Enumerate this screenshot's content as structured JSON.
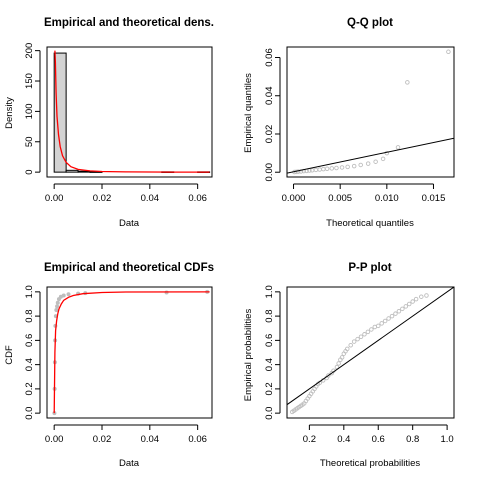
{
  "chart_data": [
    {
      "type": "histogram",
      "title": "Empirical and theoretical dens.",
      "xlabel": "Data",
      "ylabel": "Density",
      "xlim": [
        -0.003,
        0.066
      ],
      "ylim": [
        -8,
        206
      ],
      "xticks": [
        "0.00",
        "0.02",
        "0.04",
        "0.06"
      ],
      "yticks": [
        "0",
        "50",
        "100",
        "150",
        "200"
      ],
      "bars": [
        {
          "x0": 0.0,
          "x1": 0.005,
          "height": 196
        },
        {
          "x0": 0.005,
          "x1": 0.01,
          "height": 3
        },
        {
          "x0": 0.01,
          "x1": 0.015,
          "height": 1.5
        },
        {
          "x0": 0.015,
          "x1": 0.02,
          "height": 0.6
        },
        {
          "x0": 0.045,
          "x1": 0.05,
          "height": 0.5
        },
        {
          "x0": 0.06,
          "x1": 0.065,
          "height": 0.5
        }
      ],
      "density_curve": {
        "x": [
          0.0003,
          0.0005,
          0.0008,
          0.0012,
          0.0018,
          0.0025,
          0.0035,
          0.005,
          0.007,
          0.01,
          0.015,
          0.02,
          0.03,
          0.04,
          0.05,
          0.065
        ],
        "y": [
          200,
          180,
          130,
          92,
          62,
          42,
          27,
          16,
          9,
          4.5,
          2,
          1,
          0.4,
          0.2,
          0.1,
          0.05
        ]
      },
      "colors": {
        "bars": "#d3d3d3",
        "curve": "#ff0000"
      }
    },
    {
      "type": "scatter",
      "title": "Q-Q plot",
      "xlabel": "Theoretical quantiles",
      "ylabel": "Empirical quantiles",
      "xlim": [
        -0.0007,
        0.0172
      ],
      "ylim": [
        -0.0025,
        0.0655
      ],
      "xticks": [
        "0.000",
        "0.005",
        "0.010",
        "0.015"
      ],
      "yticks": [
        "0.00",
        "0.02",
        "0.04",
        "0.06"
      ],
      "points": [
        [
          0.0001,
          0.0001
        ],
        [
          0.0003,
          0.0002
        ],
        [
          0.0005,
          0.0003
        ],
        [
          0.0008,
          0.0004
        ],
        [
          0.0011,
          0.0006
        ],
        [
          0.0014,
          0.0007
        ],
        [
          0.0017,
          0.0009
        ],
        [
          0.002,
          0.001
        ],
        [
          0.0024,
          0.0012
        ],
        [
          0.0028,
          0.0014
        ],
        [
          0.0032,
          0.0016
        ],
        [
          0.0036,
          0.0018
        ],
        [
          0.0041,
          0.002
        ],
        [
          0.0046,
          0.0022
        ],
        [
          0.0052,
          0.0025
        ],
        [
          0.0058,
          0.0028
        ],
        [
          0.0065,
          0.0032
        ],
        [
          0.0072,
          0.0038
        ],
        [
          0.008,
          0.0045
        ],
        [
          0.0088,
          0.0055
        ],
        [
          0.0096,
          0.007
        ],
        [
          0.01,
          0.01
        ],
        [
          0.0112,
          0.013
        ],
        [
          0.0122,
          0.047
        ],
        [
          0.0166,
          0.063
        ]
      ],
      "reference_line": [
        [
          -0.0007,
          -0.0005
        ],
        [
          0.0172,
          0.0178
        ]
      ],
      "colors": {
        "points": "#bebebe",
        "line": "#000000"
      }
    },
    {
      "type": "line",
      "title": "Empirical and theoretical CDFs",
      "xlabel": "Data",
      "ylabel": "CDF",
      "xlim": [
        -0.003,
        0.066
      ],
      "ylim": [
        -0.04,
        1.04
      ],
      "xticks": [
        "0.00",
        "0.02",
        "0.04",
        "0.06"
      ],
      "yticks": [
        "0.0",
        "0.2",
        "0.4",
        "0.6",
        "0.8",
        "1.0"
      ],
      "empirical": {
        "x": [
          0.0001,
          0.0002,
          0.0003,
          0.0004,
          0.0005,
          0.0007,
          0.0009,
          0.0012,
          0.0015,
          0.002,
          0.0028,
          0.004,
          0.006,
          0.01,
          0.013,
          0.047,
          0.064
        ],
        "y": [
          0.0,
          0.2,
          0.42,
          0.6,
          0.72,
          0.8,
          0.85,
          0.88,
          0.91,
          0.94,
          0.96,
          0.97,
          0.98,
          0.985,
          0.99,
          0.995,
          1.0
        ]
      },
      "theoretical": {
        "x": [
          0.0,
          0.0003,
          0.0006,
          0.001,
          0.0015,
          0.002,
          0.003,
          0.004,
          0.006,
          0.008,
          0.012,
          0.02,
          0.03,
          0.065
        ],
        "y": [
          0.0,
          0.5,
          0.68,
          0.76,
          0.82,
          0.86,
          0.9,
          0.93,
          0.955,
          0.97,
          0.985,
          0.995,
          0.999,
          1.0
        ]
      },
      "colors": {
        "empirical": "#bebebe",
        "theoretical": "#ff0000"
      }
    },
    {
      "type": "scatter",
      "title": "P-P plot",
      "xlabel": "Theoretical probabilities",
      "ylabel": "Empirical probabilities",
      "xlim": [
        0.07,
        1.04
      ],
      "ylim": [
        -0.04,
        1.04
      ],
      "xticks": [
        "0.2",
        "0.4",
        "0.6",
        "0.8",
        "1.0"
      ],
      "yticks": [
        "0.0",
        "0.2",
        "0.4",
        "0.6",
        "0.8",
        "1.0"
      ],
      "points": [
        [
          0.1,
          0.01
        ],
        [
          0.11,
          0.02
        ],
        [
          0.12,
          0.03
        ],
        [
          0.13,
          0.04
        ],
        [
          0.14,
          0.05
        ],
        [
          0.15,
          0.06
        ],
        [
          0.16,
          0.07
        ],
        [
          0.17,
          0.08
        ],
        [
          0.18,
          0.1
        ],
        [
          0.19,
          0.12
        ],
        [
          0.2,
          0.14
        ],
        [
          0.21,
          0.16
        ],
        [
          0.22,
          0.18
        ],
        [
          0.23,
          0.2
        ],
        [
          0.24,
          0.22
        ],
        [
          0.25,
          0.24
        ],
        [
          0.26,
          0.25
        ],
        [
          0.28,
          0.27
        ],
        [
          0.3,
          0.29
        ],
        [
          0.31,
          0.31
        ],
        [
          0.33,
          0.33
        ],
        [
          0.34,
          0.35
        ],
        [
          0.36,
          0.38
        ],
        [
          0.37,
          0.41
        ],
        [
          0.38,
          0.44
        ],
        [
          0.39,
          0.46
        ],
        [
          0.4,
          0.49
        ],
        [
          0.41,
          0.51
        ],
        [
          0.42,
          0.53
        ],
        [
          0.44,
          0.56
        ],
        [
          0.46,
          0.59
        ],
        [
          0.48,
          0.61
        ],
        [
          0.5,
          0.63
        ],
        [
          0.52,
          0.65
        ],
        [
          0.54,
          0.67
        ],
        [
          0.56,
          0.69
        ],
        [
          0.58,
          0.71
        ],
        [
          0.6,
          0.72
        ],
        [
          0.62,
          0.74
        ],
        [
          0.64,
          0.76
        ],
        [
          0.66,
          0.78
        ],
        [
          0.68,
          0.8
        ],
        [
          0.7,
          0.82
        ],
        [
          0.72,
          0.84
        ],
        [
          0.74,
          0.86
        ],
        [
          0.76,
          0.88
        ],
        [
          0.78,
          0.9
        ],
        [
          0.8,
          0.92
        ],
        [
          0.82,
          0.94
        ],
        [
          0.85,
          0.96
        ],
        [
          0.88,
          0.97
        ]
      ],
      "reference_line": [
        [
          0.07,
          0.07
        ],
        [
          1.04,
          1.04
        ]
      ],
      "colors": {
        "points": "#bebebe",
        "line": "#000000"
      }
    }
  ]
}
